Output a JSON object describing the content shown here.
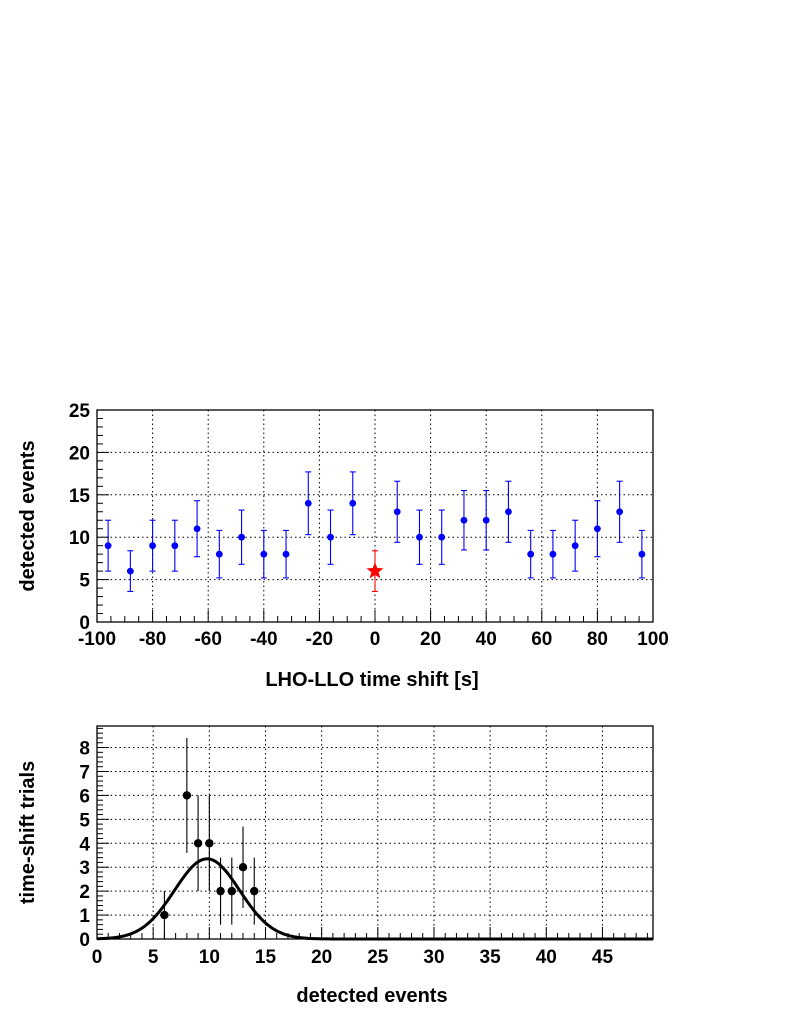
{
  "chart_data": [
    {
      "type": "scatter",
      "xlabel": "LHO-LLO time shift [s]",
      "ylabel": "detected events",
      "xlim": [
        -100,
        100
      ],
      "ylim": [
        0,
        25
      ],
      "xticks": [
        "-100",
        "-80",
        "-60",
        "-40",
        "-20",
        "0",
        "20",
        "40",
        "60",
        "80",
        "100"
      ],
      "yticks": [
        "0",
        "5",
        "10",
        "15",
        "20",
        "25"
      ],
      "grid": true,
      "series": [
        {
          "color": "#0000ff",
          "marker": "circle",
          "x": [
            -96,
            -88,
            -80,
            -72,
            -64,
            -56,
            -48,
            -40,
            -32,
            -24,
            -16,
            -8,
            8,
            16,
            24,
            32,
            40,
            48,
            56,
            64,
            72,
            80,
            88,
            96
          ],
          "y": [
            9,
            6,
            9,
            9,
            11,
            8,
            10,
            8,
            8,
            14,
            10,
            14,
            13,
            10,
            10,
            12,
            12,
            13,
            8,
            8,
            9,
            11,
            13,
            8
          ],
          "err_low": [
            3.0,
            2.4,
            3.0,
            3.0,
            3.3,
            2.8,
            3.2,
            2.8,
            2.8,
            3.7,
            3.2,
            3.7,
            3.6,
            3.2,
            3.2,
            3.5,
            3.5,
            3.6,
            2.8,
            2.8,
            3.0,
            3.3,
            3.6,
            2.8
          ],
          "err_high": [
            3.0,
            2.4,
            3.0,
            3.0,
            3.3,
            2.8,
            3.2,
            2.8,
            2.8,
            3.7,
            3.2,
            3.7,
            3.6,
            3.2,
            3.2,
            3.5,
            3.5,
            3.6,
            2.8,
            2.8,
            3.0,
            3.3,
            3.6,
            2.8
          ]
        },
        {
          "color": "#ff0000",
          "marker": "star",
          "x": [
            0
          ],
          "y": [
            6
          ],
          "err_low": [
            2.4
          ],
          "err_high": [
            2.4
          ]
        }
      ]
    },
    {
      "type": "scatter",
      "xlabel": "detected events",
      "ylabel": "time-shift trials",
      "xlim": [
        0,
        49.5
      ],
      "ylim": [
        0,
        8.9
      ],
      "xticks": [
        "0",
        "5",
        "10",
        "15",
        "20",
        "25",
        "30",
        "35",
        "40",
        "45"
      ],
      "yticks": [
        "0",
        "1",
        "2",
        "3",
        "4",
        "5",
        "6",
        "7",
        "8"
      ],
      "grid": true,
      "series": [
        {
          "color": "#000000",
          "marker": "circle",
          "x": [
            6,
            8,
            9,
            10,
            11,
            12,
            13,
            14
          ],
          "y": [
            1,
            6,
            4,
            4,
            2,
            2,
            3,
            2
          ],
          "err_low": [
            1.0,
            2.4,
            2.0,
            2.0,
            1.4,
            1.4,
            1.7,
            1.4
          ],
          "err_high": [
            1.0,
            2.4,
            2.0,
            2.0,
            1.4,
            1.4,
            1.7,
            1.4
          ]
        },
        {
          "type": "line",
          "color": "#000000",
          "curve": "gaussian",
          "amplitude": 3.35,
          "mean": 9.8,
          "sigma": 2.9
        }
      ]
    }
  ]
}
